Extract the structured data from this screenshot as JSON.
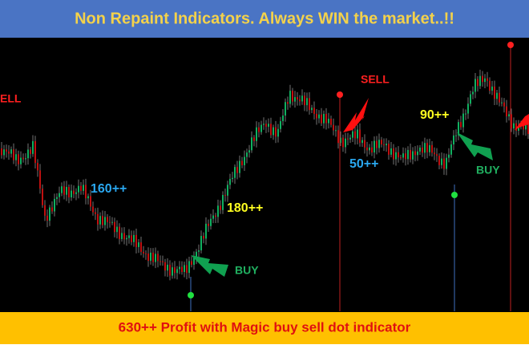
{
  "header": {
    "title": "Non Repaint Indicators. Always WIN the market..!!"
  },
  "annotations": [
    {
      "label": "ELL",
      "kind": "sell"
    },
    {
      "label": "160++",
      "kind": "profit"
    },
    {
      "label": "180++",
      "kind": "profit"
    },
    {
      "label": "BUY",
      "kind": "buy"
    },
    {
      "label": "SELL",
      "kind": "sell"
    },
    {
      "label": "50++",
      "kind": "profit"
    },
    {
      "label": "90++",
      "kind": "profit"
    },
    {
      "label": "BUY",
      "kind": "buy"
    }
  ],
  "footer": {
    "text": "630++ Profit with Magic buy sell dot indicator"
  }
}
